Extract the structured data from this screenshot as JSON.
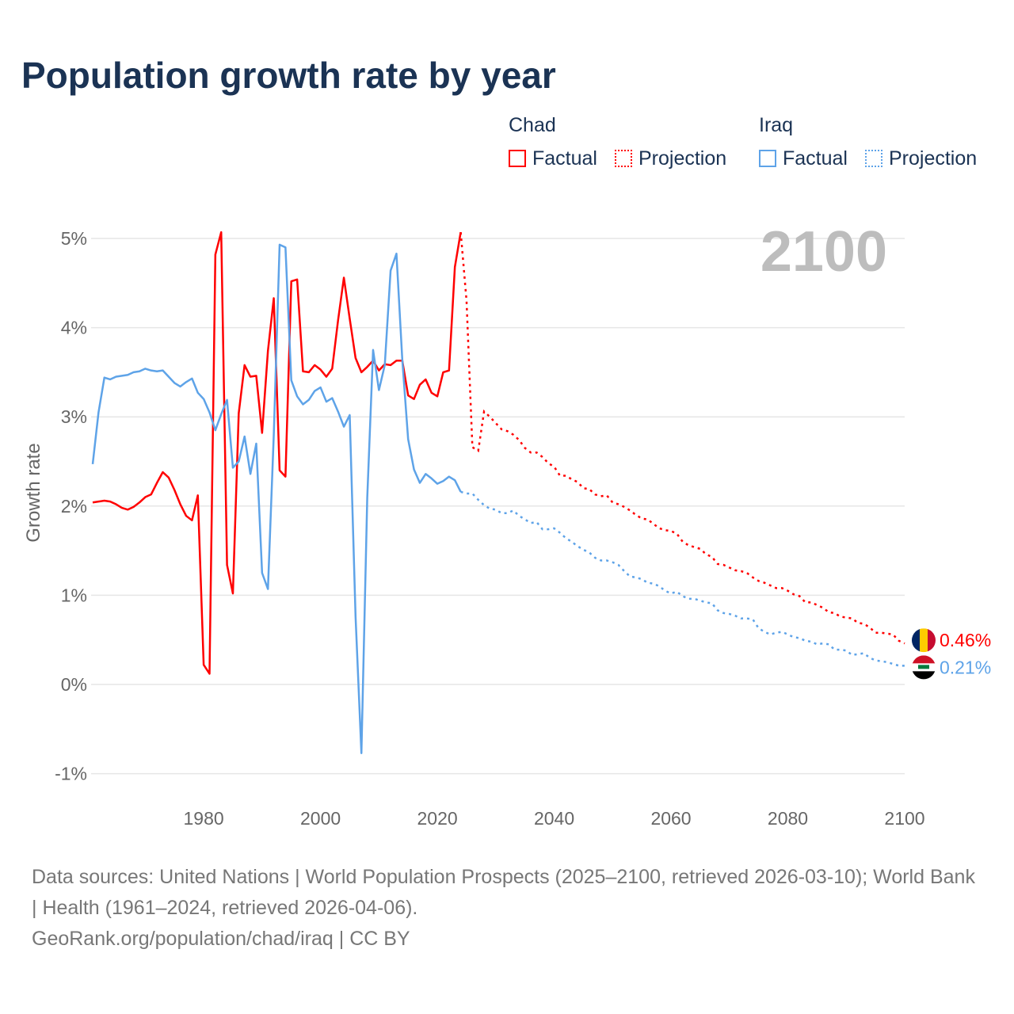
{
  "title": "Population growth rate by year",
  "legend": {
    "chad": {
      "name": "Chad",
      "factual": "Factual",
      "projection": "Projection",
      "color": "#ff0000"
    },
    "iraq": {
      "name": "Iraq",
      "factual": "Factual",
      "projection": "Projection",
      "color": "#5ea3e8"
    }
  },
  "footer": {
    "sources": "Data sources: United Nations | World Population Prospects (2025–2100, retrieved 2026-03-10); World Bank | Health (1961–2024, retrieved 2026-04-06).",
    "credit": "GeoRank.org/population/chad/iraq | CC BY"
  },
  "chart_data": {
    "type": "line",
    "ylabel": "Growth rate",
    "year_display": "2100",
    "xlim": [
      1961,
      2100
    ],
    "ylim": [
      -1,
      5
    ],
    "xticks": [
      1980,
      2000,
      2020,
      2040,
      2060,
      2080,
      2100
    ],
    "yticks": [
      {
        "v": 5,
        "label": "5%"
      },
      {
        "v": 4,
        "label": "4%"
      },
      {
        "v": 3,
        "label": "3%"
      },
      {
        "v": 2,
        "label": "2%"
      },
      {
        "v": 1,
        "label": "1%"
      },
      {
        "v": 0,
        "label": "0%"
      },
      {
        "v": -1,
        "label": "-1%"
      }
    ],
    "series": [
      {
        "name": "Chad",
        "color": "#ff0000",
        "end_label": "0.46%",
        "factual_start": 1961,
        "factual": [
          2.04,
          2.05,
          2.06,
          2.05,
          2.02,
          1.98,
          1.96,
          1.99,
          2.04,
          2.1,
          2.13,
          2.26,
          2.38,
          2.32,
          2.18,
          2.02,
          1.89,
          1.84,
          2.12,
          0.22,
          0.12,
          4.82,
          5.07,
          1.34,
          1.02,
          3.04,
          3.58,
          3.45,
          3.46,
          2.82,
          3.74,
          4.33,
          2.4,
          2.33,
          4.52,
          4.54,
          3.51,
          3.5,
          3.58,
          3.53,
          3.45,
          3.54,
          4.08,
          4.56,
          4.1,
          3.66,
          3.5,
          3.56,
          3.63,
          3.52,
          3.59,
          3.58,
          3.63,
          3.63,
          3.24,
          3.2,
          3.36,
          3.42,
          3.27,
          3.23,
          3.5,
          3.52,
          4.68,
          5.07
        ],
        "projection_start": 2025,
        "projection": [
          4.3,
          2.66,
          2.62,
          3.06,
          3.0,
          2.93,
          2.86,
          2.84,
          2.8,
          2.74,
          2.65,
          2.6,
          2.6,
          2.55,
          2.48,
          2.44,
          2.34,
          2.34,
          2.3,
          2.27,
          2.2,
          2.19,
          2.13,
          2.11,
          2.12,
          2.04,
          2.02,
          1.99,
          1.95,
          1.9,
          1.86,
          1.85,
          1.8,
          1.75,
          1.73,
          1.72,
          1.69,
          1.6,
          1.56,
          1.54,
          1.52,
          1.46,
          1.43,
          1.35,
          1.34,
          1.31,
          1.28,
          1.27,
          1.25,
          1.2,
          1.16,
          1.14,
          1.11,
          1.08,
          1.08,
          1.05,
          1.01,
          0.99,
          0.92,
          0.92,
          0.89,
          0.86,
          0.81,
          0.8,
          0.76,
          0.75,
          0.74,
          0.69,
          0.68,
          0.64,
          0.58,
          0.58,
          0.57,
          0.56,
          0.49,
          0.46
        ]
      },
      {
        "name": "Iraq",
        "color": "#5ea3e8",
        "end_label": "0.21%",
        "factual_start": 1961,
        "factual": [
          2.47,
          3.05,
          3.44,
          3.42,
          3.45,
          3.46,
          3.47,
          3.5,
          3.51,
          3.54,
          3.52,
          3.51,
          3.52,
          3.45,
          3.38,
          3.34,
          3.39,
          3.43,
          3.27,
          3.2,
          3.05,
          2.85,
          3.03,
          3.19,
          2.43,
          2.5,
          2.78,
          2.36,
          2.7,
          1.25,
          1.07,
          2.8,
          4.93,
          4.9,
          3.41,
          3.23,
          3.14,
          3.19,
          3.29,
          3.33,
          3.17,
          3.21,
          3.06,
          2.89,
          3.02,
          0.76,
          -0.77,
          2.09,
          3.75,
          3.3,
          3.58,
          4.64,
          4.83,
          3.64,
          2.75,
          2.41,
          2.26,
          2.36,
          2.31,
          2.25,
          2.28,
          2.33,
          2.29,
          2.16
        ],
        "projection_start": 2025,
        "projection": [
          2.14,
          2.14,
          2.07,
          2.01,
          1.97,
          1.96,
          1.92,
          1.92,
          1.95,
          1.89,
          1.85,
          1.81,
          1.82,
          1.74,
          1.74,
          1.75,
          1.7,
          1.64,
          1.6,
          1.55,
          1.51,
          1.48,
          1.42,
          1.39,
          1.39,
          1.37,
          1.34,
          1.27,
          1.21,
          1.2,
          1.18,
          1.14,
          1.13,
          1.1,
          1.05,
          1.02,
          1.04,
          0.99,
          0.96,
          0.96,
          0.94,
          0.92,
          0.91,
          0.83,
          0.8,
          0.79,
          0.77,
          0.74,
          0.74,
          0.73,
          0.63,
          0.59,
          0.56,
          0.58,
          0.59,
          0.56,
          0.53,
          0.52,
          0.49,
          0.48,
          0.45,
          0.46,
          0.45,
          0.39,
          0.39,
          0.38,
          0.33,
          0.34,
          0.35,
          0.3,
          0.27,
          0.26,
          0.25,
          0.23,
          0.21,
          0.21
        ]
      }
    ]
  }
}
